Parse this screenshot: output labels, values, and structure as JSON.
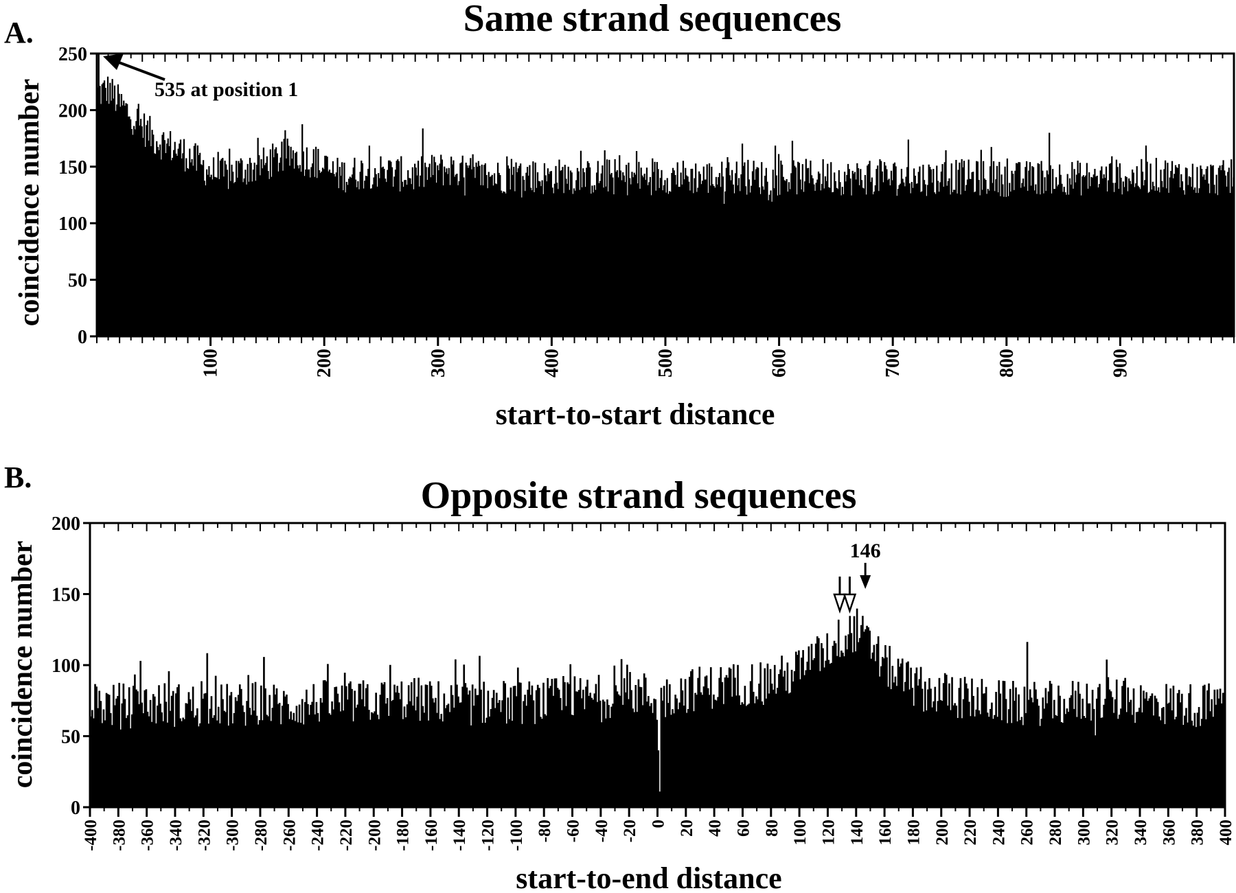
{
  "chart_data": [
    {
      "panel_label": "A.",
      "type": "bar",
      "title": "Same strand sequences",
      "xlabel": "start-to-start distance",
      "ylabel": "coincidence number",
      "xlim": [
        0,
        1000
      ],
      "ylim": [
        0,
        250
      ],
      "yticks": [
        0,
        50,
        100,
        150,
        200,
        250
      ],
      "xticks": [
        100,
        200,
        300,
        400,
        500,
        600,
        700,
        800,
        900
      ],
      "x_step": 1,
      "bin_group": 10,
      "values_by_10": [
        215,
        218,
        205,
        195,
        185,
        175,
        170,
        165,
        160,
        152,
        145,
        142,
        145,
        148,
        150,
        153,
        158,
        160,
        158,
        155,
        148,
        143,
        143,
        145,
        146,
        146,
        144,
        143,
        142,
        145,
        147,
        148,
        145,
        143,
        142,
        141,
        142,
        143,
        142,
        140,
        141,
        142,
        141,
        140,
        141,
        142,
        141,
        140,
        140,
        141,
        142,
        141,
        141,
        141,
        140,
        140,
        141,
        141,
        141,
        140,
        140,
        140,
        141,
        141,
        142,
        141,
        140,
        140,
        141,
        141,
        141,
        140,
        140,
        140,
        140,
        141,
        141,
        140,
        140,
        140,
        139,
        139,
        140,
        141,
        141,
        141,
        140,
        140,
        140,
        141,
        141,
        140,
        141,
        142,
        143,
        142,
        140,
        139,
        140,
        140
      ],
      "annotation": {
        "text": "535 at position 1",
        "x": 1,
        "value": 535
      },
      "color": "#000000",
      "grid": false
    },
    {
      "panel_label": "B.",
      "type": "bar",
      "title": "Opposite strand sequences",
      "xlabel": "start-to-end distance",
      "ylabel": "coincidence number",
      "xlim": [
        -400,
        400
      ],
      "ylim": [
        0,
        200
      ],
      "yticks": [
        0,
        50,
        100,
        150,
        200
      ],
      "xticks": [
        -400,
        -380,
        -360,
        -340,
        -320,
        -300,
        -280,
        -260,
        -240,
        -220,
        -200,
        -180,
        -160,
        -140,
        -120,
        -100,
        -80,
        -60,
        -40,
        -20,
        0,
        20,
        40,
        60,
        80,
        100,
        120,
        140,
        160,
        180,
        200,
        220,
        240,
        260,
        280,
        300,
        320,
        340,
        360,
        380,
        400
      ],
      "x_step": 1,
      "bin_group": 10,
      "values_by_10": [
        73,
        72,
        72,
        71,
        72,
        73,
        72,
        72,
        71,
        72,
        71,
        72,
        73,
        72,
        71,
        72,
        74,
        74,
        73,
        74,
        75,
        75,
        76,
        76,
        74,
        74,
        73,
        73,
        74,
        74,
        73,
        74,
        75,
        76,
        77,
        77,
        78,
        79,
        80,
        80,
        74,
        80,
        82,
        84,
        85,
        86,
        87,
        88,
        90,
        92,
        98,
        104,
        112,
        120,
        125,
        112,
        100,
        92,
        86,
        82,
        80,
        78,
        76,
        75,
        74,
        73,
        73,
        73,
        73,
        74,
        75,
        75,
        76,
        75,
        74,
        73,
        73,
        72,
        72,
        72,
        72
      ],
      "dip": {
        "x": 1,
        "value": 11
      },
      "annotations": [
        {
          "text": "146",
          "x": 146,
          "arrow": "filled"
        },
        {
          "x": 128,
          "arrow": "open"
        },
        {
          "x": 135,
          "arrow": "open"
        }
      ],
      "color": "#000000",
      "grid": false
    }
  ]
}
